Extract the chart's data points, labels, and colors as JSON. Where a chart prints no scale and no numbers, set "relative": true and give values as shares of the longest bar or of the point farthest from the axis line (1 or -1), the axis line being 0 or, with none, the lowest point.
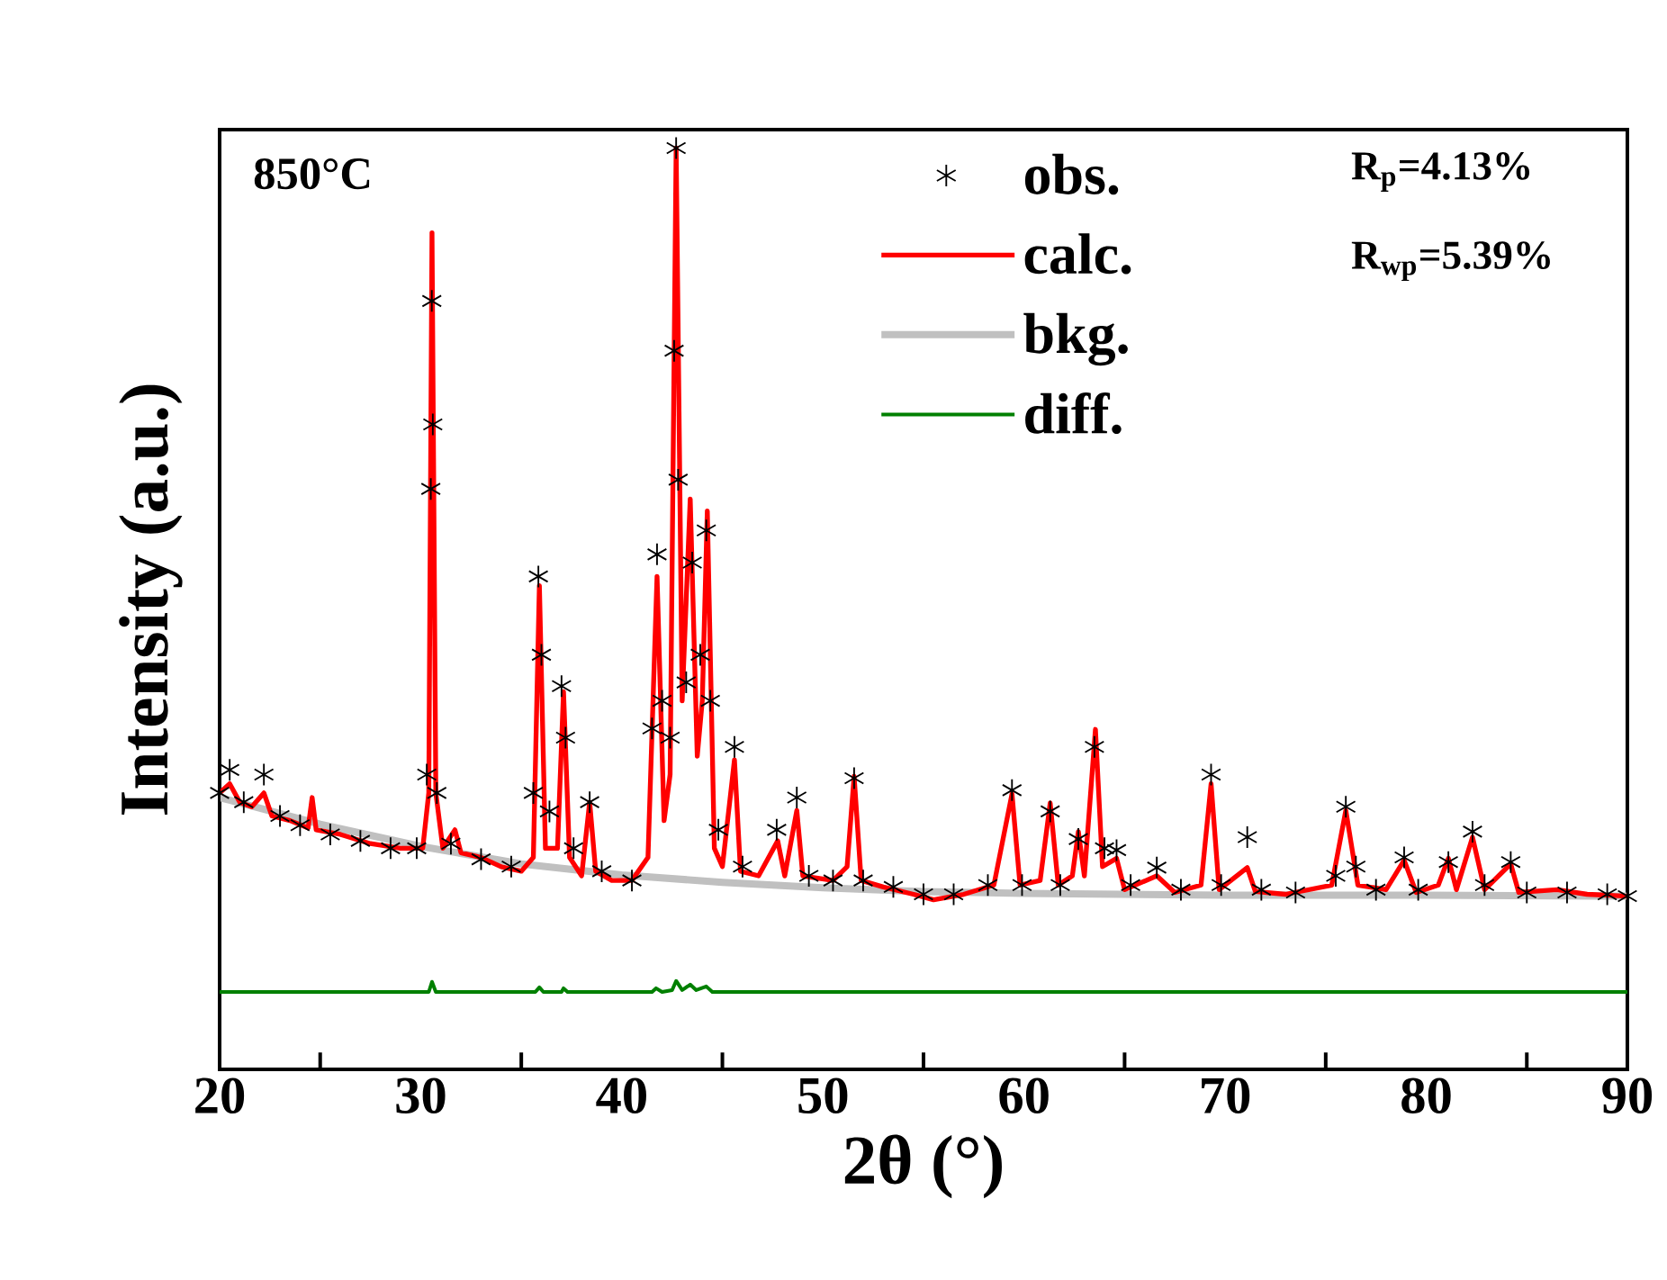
{
  "chart_data": {
    "type": "line",
    "relative": true,
    "xlabel": "2θ (°)",
    "ylabel": "Intensity (a.u.)",
    "annotations": [
      "850°C",
      "R$_{p}$=4.13%",
      "R$_{wp}$=5.39%"
    ],
    "xlim": [
      20,
      90
    ],
    "xticks": [
      20,
      {
        "value": 25,
        "label": null
      },
      30,
      {
        "value": 35,
        "label": null
      },
      40,
      {
        "value": 45,
        "label": null
      },
      50,
      {
        "value": 55,
        "label": null
      },
      60,
      {
        "value": 65,
        "label": null
      },
      70,
      {
        "value": 75,
        "label": null
      },
      80,
      {
        "value": 85,
        "label": null
      },
      90
    ],
    "legend": "top",
    "grid": false,
    "tick_labels": "x",
    "series": [
      {
        "name": "obs.",
        "type": "scatter",
        "marker": "cross",
        "color": "#000000",
        "x": [
          20.0,
          20.5,
          21.2,
          22.2,
          23.0,
          24.0,
          25.5,
          27.0,
          28.5,
          29.8,
          30.3,
          30.5,
          30.55,
          30.6,
          30.8,
          31.5,
          33.0,
          34.5,
          35.6,
          35.85,
          36.0,
          36.4,
          37.0,
          37.2,
          37.6,
          38.4,
          39.0,
          40.5,
          41.5,
          41.75,
          42.0,
          42.4,
          42.6,
          42.7,
          42.8,
          43.2,
          43.5,
          43.9,
          44.2,
          44.4,
          44.8,
          45.6,
          46.0,
          47.7,
          48.7,
          49.3,
          50.5,
          51.55,
          52.0,
          53.5,
          55.0,
          56.5,
          58.2,
          59.4,
          59.9,
          61.3,
          61.8,
          62.7,
          63.5,
          64.0,
          64.6,
          65.3,
          66.6,
          67.8,
          69.3,
          69.8,
          71.1,
          71.8,
          73.5,
          75.5,
          76.0,
          76.5,
          77.5,
          78.9,
          79.6,
          81.1,
          82.3,
          82.9,
          84.2,
          85.0,
          87.0,
          89.0,
          90.0
        ],
        "values": [
          0.3,
          0.325,
          0.29,
          0.32,
          0.275,
          0.265,
          0.255,
          0.248,
          0.24,
          0.24,
          0.32,
          0.63,
          0.834,
          0.7,
          0.3,
          0.245,
          0.228,
          0.22,
          0.3,
          0.535,
          0.45,
          0.28,
          0.416,
          0.36,
          0.24,
          0.29,
          0.215,
          0.205,
          0.37,
          0.559,
          0.4,
          0.36,
          0.78,
          1.0,
          0.64,
          0.42,
          0.55,
          0.45,
          0.585,
          0.4,
          0.26,
          0.35,
          0.22,
          0.26,
          0.295,
          0.21,
          0.205,
          0.316,
          0.205,
          0.198,
          0.19,
          0.19,
          0.2,
          0.303,
          0.2,
          0.28,
          0.2,
          0.25,
          0.35,
          0.24,
          0.238,
          0.2,
          0.219,
          0.195,
          0.32,
          0.2,
          0.252,
          0.195,
          0.192,
          0.21,
          0.285,
          0.22,
          0.195,
          0.23,
          0.195,
          0.225,
          0.258,
          0.2,
          0.225,
          0.192,
          0.192,
          0.19,
          0.188
        ]
      },
      {
        "name": "calc.",
        "type": "line",
        "color": "#ff0000",
        "x": [
          20.0,
          20.5,
          21.0,
          21.6,
          22.2,
          22.6,
          23.5,
          24.4,
          24.6,
          24.8,
          26.0,
          27.5,
          29.0,
          30.1,
          30.4,
          30.56,
          30.75,
          31.1,
          31.7,
          32.0,
          33.0,
          34.0,
          35.0,
          35.6,
          35.9,
          36.2,
          36.8,
          37.1,
          37.4,
          38.0,
          38.4,
          38.7,
          39.5,
          40.5,
          41.3,
          41.75,
          42.1,
          42.4,
          42.7,
          43.0,
          43.4,
          43.75,
          44.0,
          44.25,
          44.6,
          45.0,
          45.6,
          45.9,
          46.8,
          47.75,
          48.1,
          48.7,
          49.0,
          50.5,
          51.2,
          51.55,
          51.9,
          53.0,
          54.5,
          55.5,
          57.0,
          58.5,
          59.4,
          59.8,
          60.8,
          61.3,
          61.7,
          62.4,
          62.7,
          63.0,
          63.55,
          63.9,
          64.6,
          65.0,
          66.6,
          67.5,
          68.8,
          69.3,
          69.7,
          71.1,
          71.5,
          73.0,
          75.3,
          76.0,
          76.6,
          78.0,
          78.9,
          79.5,
          80.6,
          81.1,
          81.5,
          82.3,
          82.9,
          84.2,
          84.6,
          86.5,
          88.0,
          90.0
        ],
        "values": [
          0.3,
          0.31,
          0.29,
          0.285,
          0.3,
          0.275,
          0.27,
          0.262,
          0.295,
          0.26,
          0.255,
          0.245,
          0.24,
          0.24,
          0.3,
          0.908,
          0.3,
          0.24,
          0.26,
          0.235,
          0.23,
          0.22,
          0.215,
          0.23,
          0.525,
          0.24,
          0.24,
          0.41,
          0.23,
          0.21,
          0.29,
          0.215,
          0.205,
          0.205,
          0.23,
          0.535,
          0.27,
          0.32,
          1.0,
          0.4,
          0.619,
          0.34,
          0.4,
          0.606,
          0.24,
          0.22,
          0.336,
          0.215,
          0.21,
          0.248,
          0.21,
          0.281,
          0.21,
          0.205,
          0.22,
          0.318,
          0.205,
          0.198,
          0.19,
          0.184,
          0.19,
          0.2,
          0.299,
          0.2,
          0.205,
          0.289,
          0.2,
          0.21,
          0.258,
          0.21,
          0.369,
          0.22,
          0.229,
          0.195,
          0.21,
          0.192,
          0.2,
          0.31,
          0.195,
          0.219,
          0.193,
          0.19,
          0.2,
          0.281,
          0.2,
          0.195,
          0.227,
          0.192,
          0.2,
          0.229,
          0.195,
          0.252,
          0.195,
          0.223,
          0.192,
          0.195,
          0.19,
          0.188
        ]
      },
      {
        "name": "bkg.",
        "type": "line",
        "color": "#c0c0c0",
        "x": [
          20,
          25,
          30,
          35,
          40,
          45,
          50,
          55,
          60,
          70,
          80,
          90
        ],
        "values": [
          0.295,
          0.266,
          0.242,
          0.223,
          0.211,
          0.203,
          0.197,
          0.193,
          0.191,
          0.189,
          0.189,
          0.188
        ]
      },
      {
        "name": "diff.",
        "type": "line",
        "color": "#008000",
        "x": [
          20,
          30.4,
          30.56,
          30.75,
          35.7,
          35.9,
          36.1,
          37.0,
          37.1,
          37.3,
          41.5,
          41.7,
          42.0,
          42.5,
          42.7,
          43.0,
          43.4,
          43.7,
          44.2,
          44.5,
          90
        ],
        "values": [
          0.084,
          0.084,
          0.095,
          0.084,
          0.084,
          0.089,
          0.084,
          0.084,
          0.088,
          0.084,
          0.084,
          0.088,
          0.084,
          0.086,
          0.096,
          0.086,
          0.092,
          0.086,
          0.09,
          0.084,
          0.084
        ]
      }
    ]
  }
}
